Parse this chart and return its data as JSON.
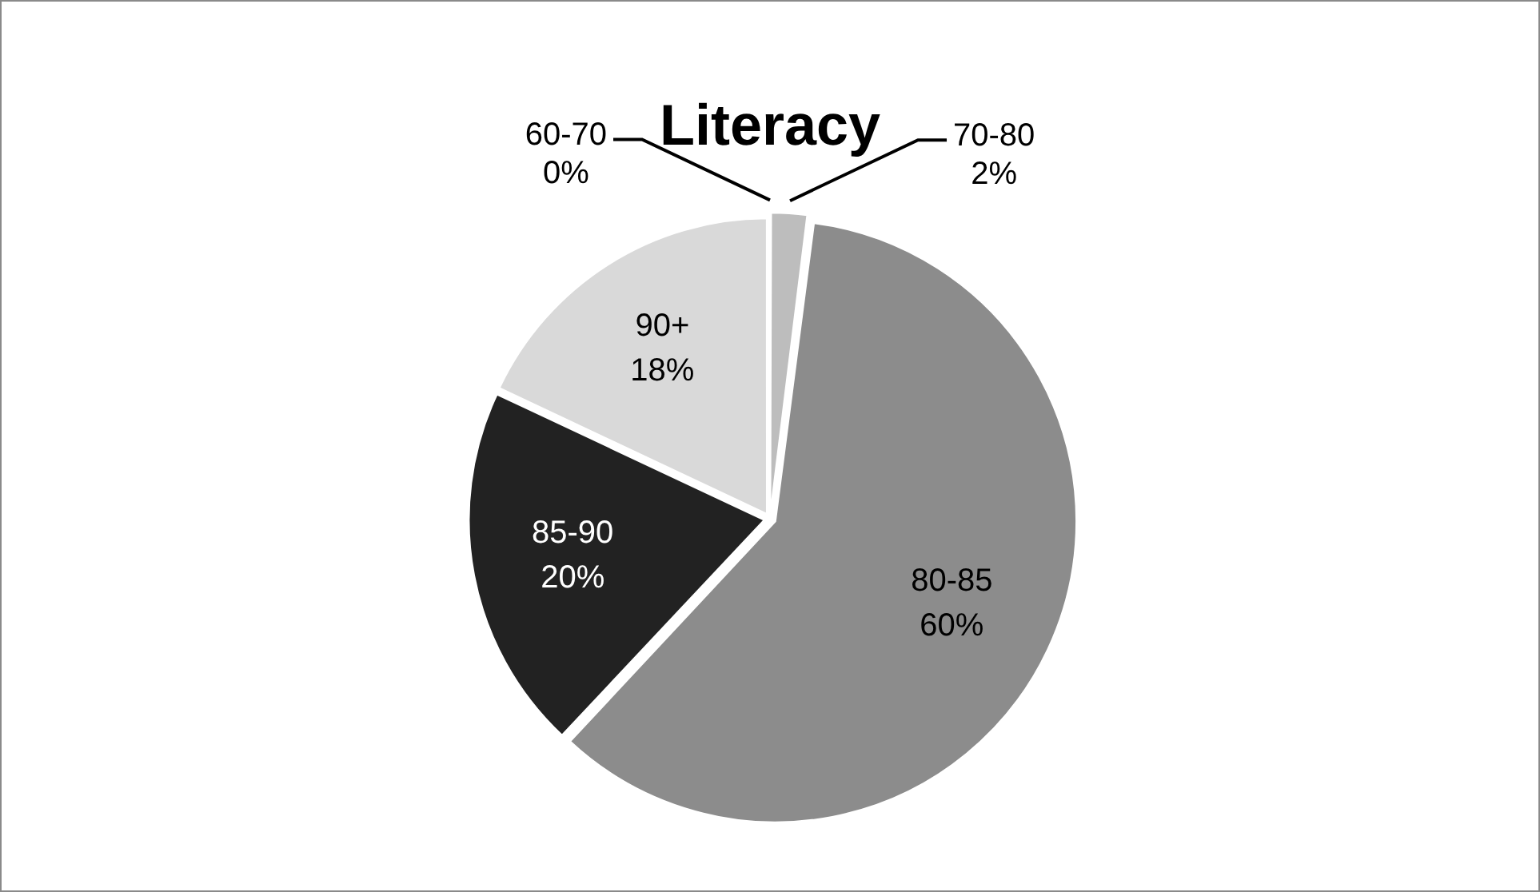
{
  "chart_data": {
    "type": "pie",
    "title": "Literacy",
    "categories": [
      "60-70",
      "70-80",
      "80-85",
      "85-90",
      "90+"
    ],
    "values": [
      0,
      2,
      60,
      20,
      18
    ],
    "value_labels": [
      "0%",
      "2%",
      "60%",
      "20%",
      "18%"
    ],
    "colors": [
      "#3a3a3a",
      "#bdbdbd",
      "#8c8c8c",
      "#222222",
      "#d9d9d9"
    ],
    "legend": false
  }
}
